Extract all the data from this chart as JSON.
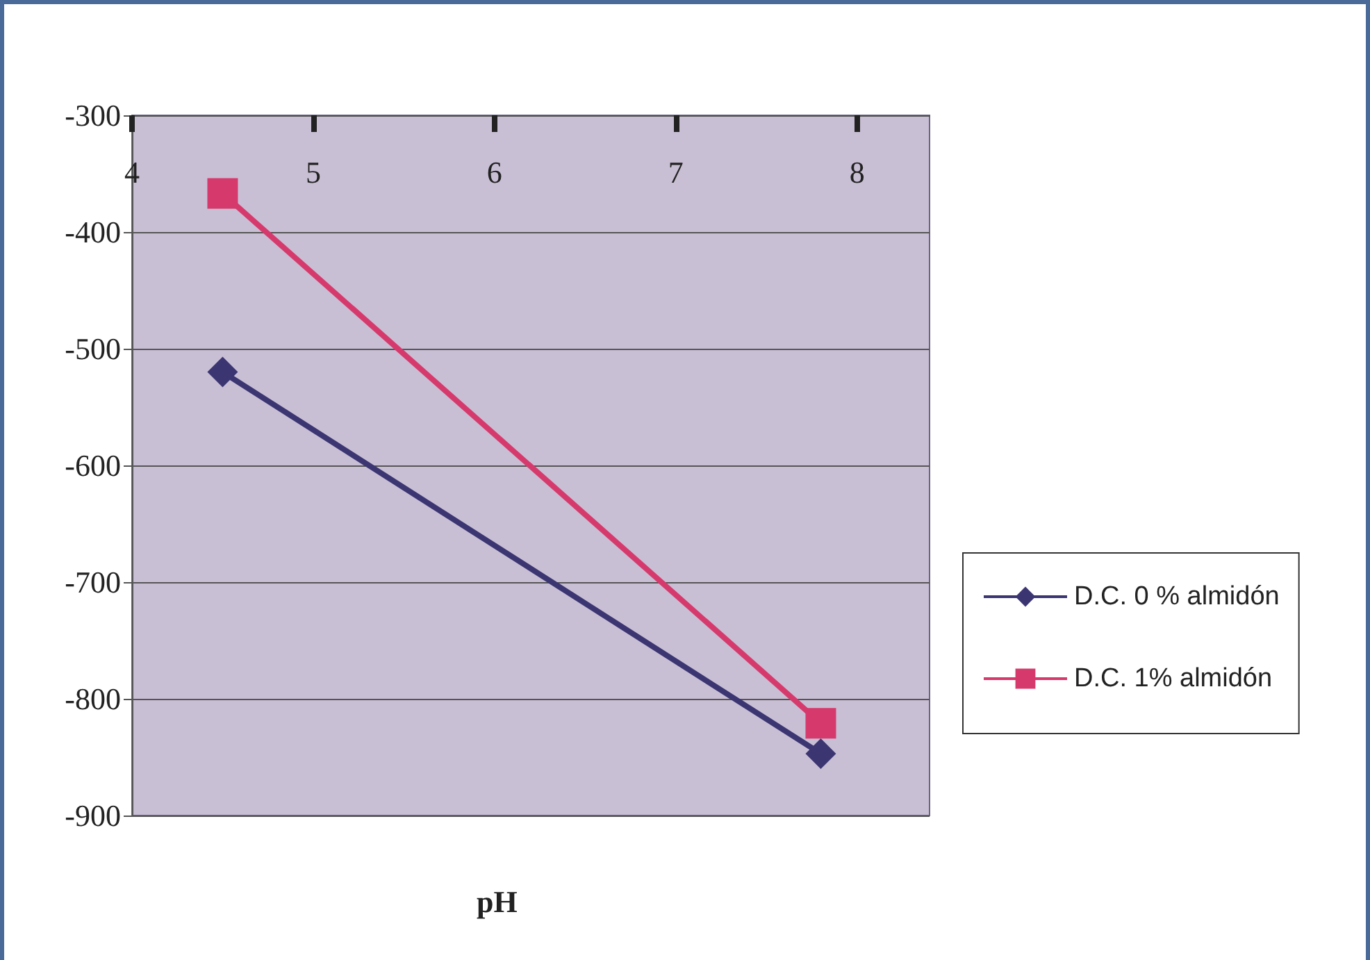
{
  "chart_data": {
    "type": "line",
    "xlabel": "pH",
    "x": [
      4.5,
      7.8
    ],
    "series": [
      {
        "name": "D.C. 0 % almidón",
        "color": "#3b3672",
        "marker": "diamond",
        "values": [
          -520,
          -847
        ]
      },
      {
        "name": "D.C. 1% almidón",
        "color": "#d63a6c",
        "marker": "square",
        "values": [
          -367,
          -821
        ]
      }
    ],
    "xlim": [
      4,
      8.4
    ],
    "xticks": [
      4,
      5,
      6,
      7,
      8
    ],
    "ylim": [
      -900,
      -300
    ],
    "yticks": [
      -300,
      -400,
      -500,
      -600,
      -700,
      -800,
      -900
    ],
    "grid": "y",
    "legend": "right"
  }
}
